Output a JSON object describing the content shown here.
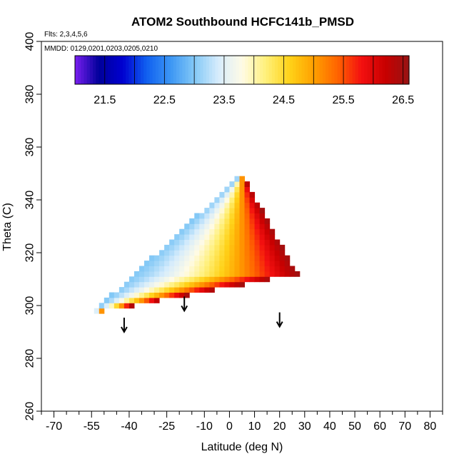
{
  "chart_data": {
    "type": "heatmap",
    "title": "ATOM2 Southbound HCFC141b_PMSD",
    "flights_note": "Flts: 2,3,4,5,6",
    "dates_note": "MMDD: 0129,0201,0203,0205,0210",
    "xlabel": "Latitude (deg N)",
    "ylabel": "Theta (C)",
    "xlim": [
      -75,
      85
    ],
    "ylim": [
      260,
      400
    ],
    "x_ticks": [
      -70,
      -55,
      -40,
      -25,
      -10,
      0,
      10,
      20,
      30,
      40,
      50,
      60,
      70,
      80
    ],
    "y_ticks": [
      260,
      280,
      300,
      320,
      340,
      360,
      380,
      400
    ],
    "colorbar": {
      "min": 21,
      "max": 26.6,
      "tick_values": [
        21.5,
        22.5,
        23.5,
        24.5,
        25.5,
        26.5
      ],
      "tick_labels": [
        "21.5",
        "22.5",
        "23.5",
        "24.5",
        "25.5",
        "26.5"
      ],
      "colors": [
        "#7a1ff0",
        "#00009a",
        "#0000d0",
        "#1060f0",
        "#3c96f4",
        "#82c8f6",
        "#d6ecfc",
        "#fffbe6",
        "#fff07a",
        "#ffd218",
        "#ffa000",
        "#ff6400",
        "#f41010",
        "#c80000",
        "#961414"
      ]
    },
    "field_summary": {
      "lat_range": [
        -55,
        27
      ],
      "theta_range": [
        297,
        350
      ],
      "apex": [
        5,
        350
      ],
      "southwest_corner": [
        -55,
        297
      ],
      "southeast_corner": [
        27,
        312
      ],
      "cold_edge_value": 23.0,
      "warm_edge_value": 26.5
    },
    "markers": [
      {
        "lat": -42,
        "theta": 290
      },
      {
        "lat": -18,
        "theta": 298
      },
      {
        "lat": 20,
        "theta": 292
      }
    ]
  }
}
